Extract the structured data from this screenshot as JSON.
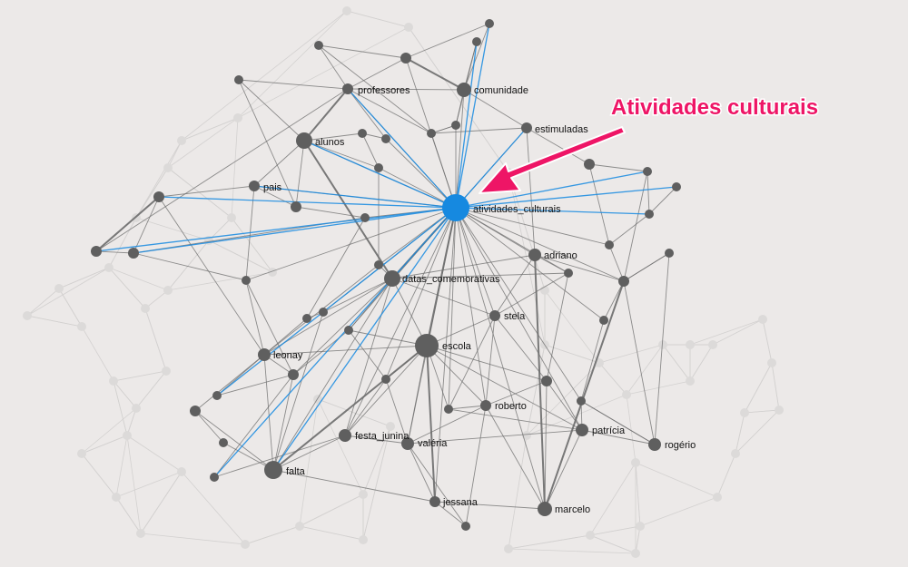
{
  "annotation": {
    "text": "Atividades culturais"
  },
  "colors": {
    "background": "#ece9e8",
    "node": "#5f5f5f",
    "edge": "#6b6b6b",
    "faint": "#d3d1d0",
    "highlight": "#1689e0",
    "callout": "#ee1566"
  },
  "labels": {
    "professores": "professores",
    "comunidade": "comunidade",
    "estimuladas": "estimuladas",
    "alunos": "alunos",
    "pais": "pais",
    "atividades_culturais": "atividades_culturais",
    "adriano": "adriano",
    "datas_comemorativas": "datas_comemorativas",
    "stela": "stela",
    "leonay": "leonay",
    "escola": "escola",
    "roberto": "roberto",
    "patricia": "patrícia",
    "rogerio": "rogério",
    "festa_junina": "festa_junina",
    "valeria": "valéria",
    "falta": "falta",
    "jessana": "jessana",
    "marcelo": "marcelo"
  }
}
